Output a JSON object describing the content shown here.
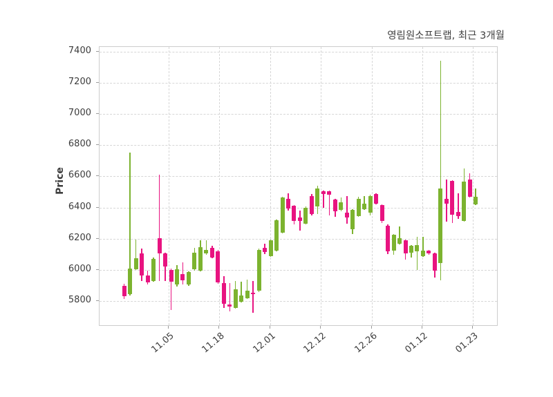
{
  "chart_data": {
    "type": "candlestick",
    "title": "영림원소프트랩, 최근 3개월",
    "ylabel": "Price",
    "ylim": [
      5637,
      7429
    ],
    "yticks": [
      7400,
      7200,
      7000,
      6800,
      6600,
      6400,
      6200,
      6000,
      5800
    ],
    "xtick_labels": [
      "11.05",
      "11.18",
      "12.01",
      "12.12",
      "12.26",
      "01.12",
      "01.23"
    ],
    "xtick_positions": [
      0.1733,
      0.3005,
      0.4276,
      0.5548,
      0.682,
      0.8092,
      0.9364
    ],
    "grid": "dashed-both-axes",
    "legend": "none",
    "colors": {
      "up": "#7cb32f",
      "down": "#e81380",
      "grid": "#d6d6d6",
      "frame": "#cccccc",
      "text": "#3c3c3c"
    },
    "ohlc_note": "each candle is [open, high, low, close]",
    "ohlc": [
      [
        5900,
        5910,
        5815,
        5830
      ],
      [
        5845,
        6750,
        5835,
        6010
      ],
      [
        6005,
        6195,
        6000,
        6075
      ],
      [
        6105,
        6135,
        5930,
        5965
      ],
      [
        5965,
        5995,
        5905,
        5920
      ],
      [
        5930,
        6080,
        5925,
        6070
      ],
      [
        6205,
        6610,
        5930,
        6105
      ],
      [
        6105,
        6110,
        5930,
        6020
      ],
      [
        6000,
        6010,
        5745,
        5925
      ],
      [
        5905,
        6030,
        5895,
        6005
      ],
      [
        5975,
        6050,
        5905,
        5935
      ],
      [
        5905,
        5990,
        5900,
        5985
      ],
      [
        6005,
        6140,
        5995,
        6110
      ],
      [
        5995,
        6190,
        5990,
        6145
      ],
      [
        6105,
        6190,
        6095,
        6130
      ],
      [
        6140,
        6155,
        6075,
        6080
      ],
      [
        6120,
        6130,
        5910,
        5920
      ],
      [
        5915,
        5960,
        5755,
        5785
      ],
      [
        5780,
        5915,
        5735,
        5765
      ],
      [
        5755,
        5930,
        5750,
        5875
      ],
      [
        5795,
        5925,
        5790,
        5835
      ],
      [
        5820,
        5940,
        5815,
        5865
      ],
      [
        5855,
        5930,
        5727,
        5845
      ],
      [
        5865,
        6135,
        5860,
        6130
      ],
      [
        6140,
        6170,
        6100,
        6115
      ],
      [
        6090,
        6195,
        6085,
        6190
      ],
      [
        6125,
        6325,
        6120,
        6320
      ],
      [
        6240,
        6470,
        6235,
        6465
      ],
      [
        6455,
        6490,
        6380,
        6395
      ],
      [
        6410,
        6415,
        6290,
        6315
      ],
      [
        6335,
        6380,
        6250,
        6315
      ],
      [
        6295,
        6405,
        6290,
        6400
      ],
      [
        6475,
        6485,
        6350,
        6360
      ],
      [
        6405,
        6540,
        6360,
        6520
      ],
      [
        6505,
        6510,
        6400,
        6485
      ],
      [
        6505,
        6510,
        6350,
        6480
      ],
      [
        6450,
        6455,
        6340,
        6375
      ],
      [
        6385,
        6465,
        6375,
        6435
      ],
      [
        6365,
        6475,
        6295,
        6335
      ],
      [
        6260,
        6390,
        6230,
        6385
      ],
      [
        6345,
        6470,
        6340,
        6455
      ],
      [
        6390,
        6475,
        6385,
        6425
      ],
      [
        6365,
        6480,
        6350,
        6475
      ],
      [
        6485,
        6490,
        6420,
        6425
      ],
      [
        6415,
        6420,
        6300,
        6315
      ],
      [
        6285,
        6290,
        6100,
        6120
      ],
      [
        6125,
        6230,
        6095,
        6225
      ],
      [
        6170,
        6280,
        6165,
        6205
      ],
      [
        6190,
        6195,
        6065,
        6105
      ],
      [
        6110,
        6160,
        6080,
        6155
      ],
      [
        6120,
        6210,
        6000,
        6160
      ],
      [
        6090,
        6210,
        6085,
        6125
      ],
      [
        6125,
        6130,
        6095,
        6105
      ],
      [
        6105,
        6110,
        5950,
        5995
      ],
      [
        6045,
        7340,
        5935,
        6520
      ],
      [
        6455,
        6580,
        6310,
        6425
      ],
      [
        6570,
        6575,
        6300,
        6355
      ],
      [
        6370,
        6490,
        6325,
        6345
      ],
      [
        6315,
        6650,
        6310,
        6565
      ],
      [
        6580,
        6620,
        6465,
        6470
      ],
      [
        6420,
        6520,
        6415,
        6470
      ]
    ]
  }
}
